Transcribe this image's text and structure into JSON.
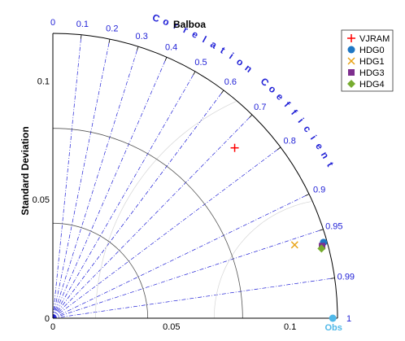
{
  "chart_data": {
    "type": "scatter",
    "subtype": "taylor-diagram",
    "title": "Balboa",
    "ylabel": "Standard Deviation",
    "xlabel": "",
    "corr_label": "Correlation Coefficient",
    "std_max": 0.12,
    "std_ticks": [
      0,
      0.05,
      0.1
    ],
    "std_arcs": [
      0.04,
      0.08,
      0.12
    ],
    "corr_ticks": [
      0,
      0.1,
      0.2,
      0.3,
      0.4,
      0.5,
      0.6,
      0.7,
      0.8,
      0.9,
      0.95,
      0.99,
      1
    ],
    "obs": {
      "label": "Obs",
      "std": 0.118,
      "color": "#4fb8e8"
    },
    "series": [
      {
        "name": "VJRAM",
        "marker": "plus",
        "color": "#ff0000",
        "std": 0.105,
        "corr": 0.73
      },
      {
        "name": "HDG0",
        "marker": "circle",
        "color": "#1f77c4",
        "std": 0.1185,
        "corr": 0.963
      },
      {
        "name": "HDG1",
        "marker": "x",
        "color": "#e8a317",
        "std": 0.1065,
        "corr": 0.957
      },
      {
        "name": "HDG3",
        "marker": "square",
        "color": "#7e2f8e",
        "std": 0.1175,
        "corr": 0.966
      },
      {
        "name": "HDG4",
        "marker": "diamond",
        "color": "#77ac30",
        "std": 0.117,
        "corr": 0.968
      }
    ],
    "legend_position": "top-right",
    "grid": true
  }
}
